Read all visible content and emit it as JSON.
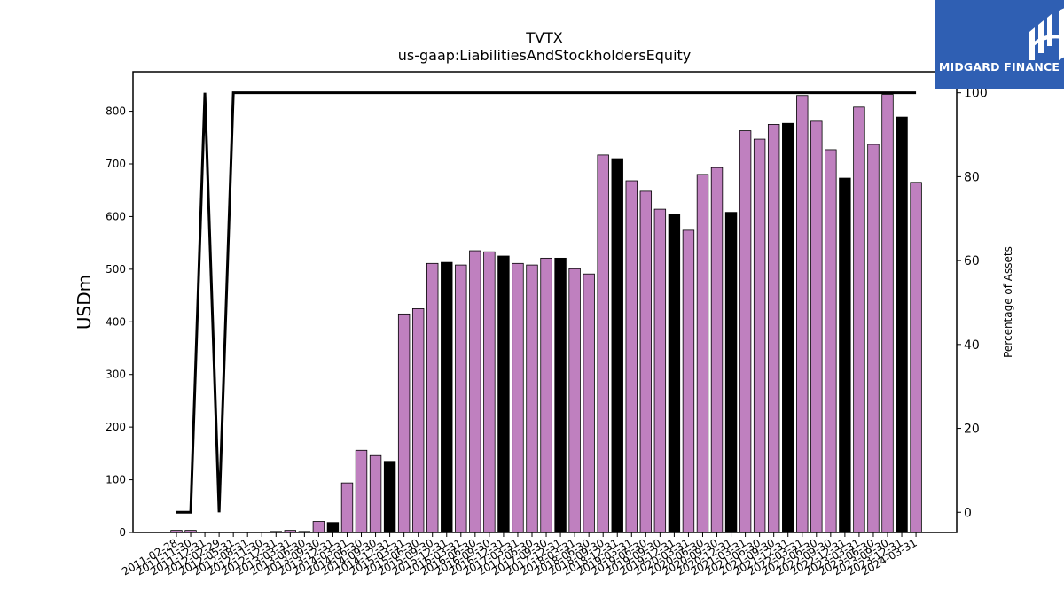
{
  "chart_data": {
    "type": "bar",
    "title": "TVTX",
    "subtitle": "us-gaap:LiabilitiesAndStockholdersEquity",
    "ylabel": "USDm",
    "y2label": "Percentage of Assets",
    "ylim": [
      0,
      875
    ],
    "y2lim": [
      -4.8,
      105
    ],
    "yticks": [
      0,
      100,
      200,
      300,
      400,
      500,
      600,
      700,
      800
    ],
    "y2ticks": [
      0,
      20,
      40,
      60,
      80,
      100
    ],
    "categories": [
      "2011-02-28",
      "2011-11-30",
      "2011-12-31",
      "2012-02-29",
      "2012-05-31",
      "2012-08-31",
      "2012-11-30",
      "2012-12-31",
      "2013-03-31",
      "2013-06-30",
      "2013-09-30",
      "2013-12-31",
      "2014-03-31",
      "2014-06-30",
      "2014-09-30",
      "2014-12-31",
      "2015-03-31",
      "2015-06-30",
      "2015-09-30",
      "2015-12-31",
      "2016-03-31",
      "2016-06-30",
      "2016-09-30",
      "2016-12-31",
      "2017-03-31",
      "2017-06-30",
      "2017-09-30",
      "2017-12-31",
      "2018-03-31",
      "2018-06-30",
      "2018-09-30",
      "2018-12-31",
      "2019-03-31",
      "2019-06-30",
      "2019-09-30",
      "2019-12-31",
      "2020-03-31",
      "2020-06-30",
      "2020-09-30",
      "2020-12-31",
      "2021-03-31",
      "2021-06-30",
      "2021-09-30",
      "2021-12-31",
      "2022-03-31",
      "2022-06-30",
      "2022-09-30",
      "2022-12-31",
      "2023-03-31",
      "2023-06-30",
      "2023-09-30",
      "2023-12-31",
      "2024-03-31"
    ],
    "values": [
      4,
      4,
      0,
      0,
      0,
      0,
      0,
      2,
      4,
      2,
      21,
      19,
      94,
      156,
      146,
      135,
      415,
      425,
      511,
      513,
      508,
      535,
      533,
      525,
      511,
      508,
      521,
      521,
      501,
      491,
      717,
      710,
      668,
      648,
      614,
      605,
      574,
      680,
      693,
      608,
      763,
      747,
      775,
      777,
      830,
      781,
      727,
      673,
      808,
      737,
      832,
      789,
      665
    ],
    "year_end": [
      false,
      false,
      true,
      false,
      false,
      false,
      false,
      true,
      false,
      false,
      false,
      true,
      false,
      false,
      false,
      true,
      false,
      false,
      false,
      true,
      false,
      false,
      false,
      true,
      false,
      false,
      false,
      true,
      false,
      false,
      false,
      true,
      false,
      false,
      false,
      true,
      false,
      false,
      false,
      true,
      false,
      false,
      false,
      true,
      false,
      false,
      false,
      true,
      false,
      false,
      false,
      true,
      false
    ],
    "line_series": {
      "name": "Percentage of Assets",
      "axis": "right",
      "x_start": "2011-02-28",
      "x_end": "2024-03-31",
      "points": [
        {
          "x": "2011-02-28",
          "y": 0
        },
        {
          "x": "2011-11-30",
          "y": 0
        },
        {
          "x": "2011-12-31",
          "y": 100
        },
        {
          "x": "2012-02-29",
          "y": 0
        },
        {
          "x": "2012-05-31",
          "y": 100
        },
        {
          "x": "2024-03-31",
          "y": 100
        }
      ]
    },
    "colors": {
      "bar": "#bf80bf",
      "bar_year_end": "#000000",
      "bar_edge": "#000000",
      "line": "#000000"
    },
    "grid": false
  },
  "logo": {
    "text": "MIDGARD FINANCE",
    "bg": "#2f5fb3"
  }
}
